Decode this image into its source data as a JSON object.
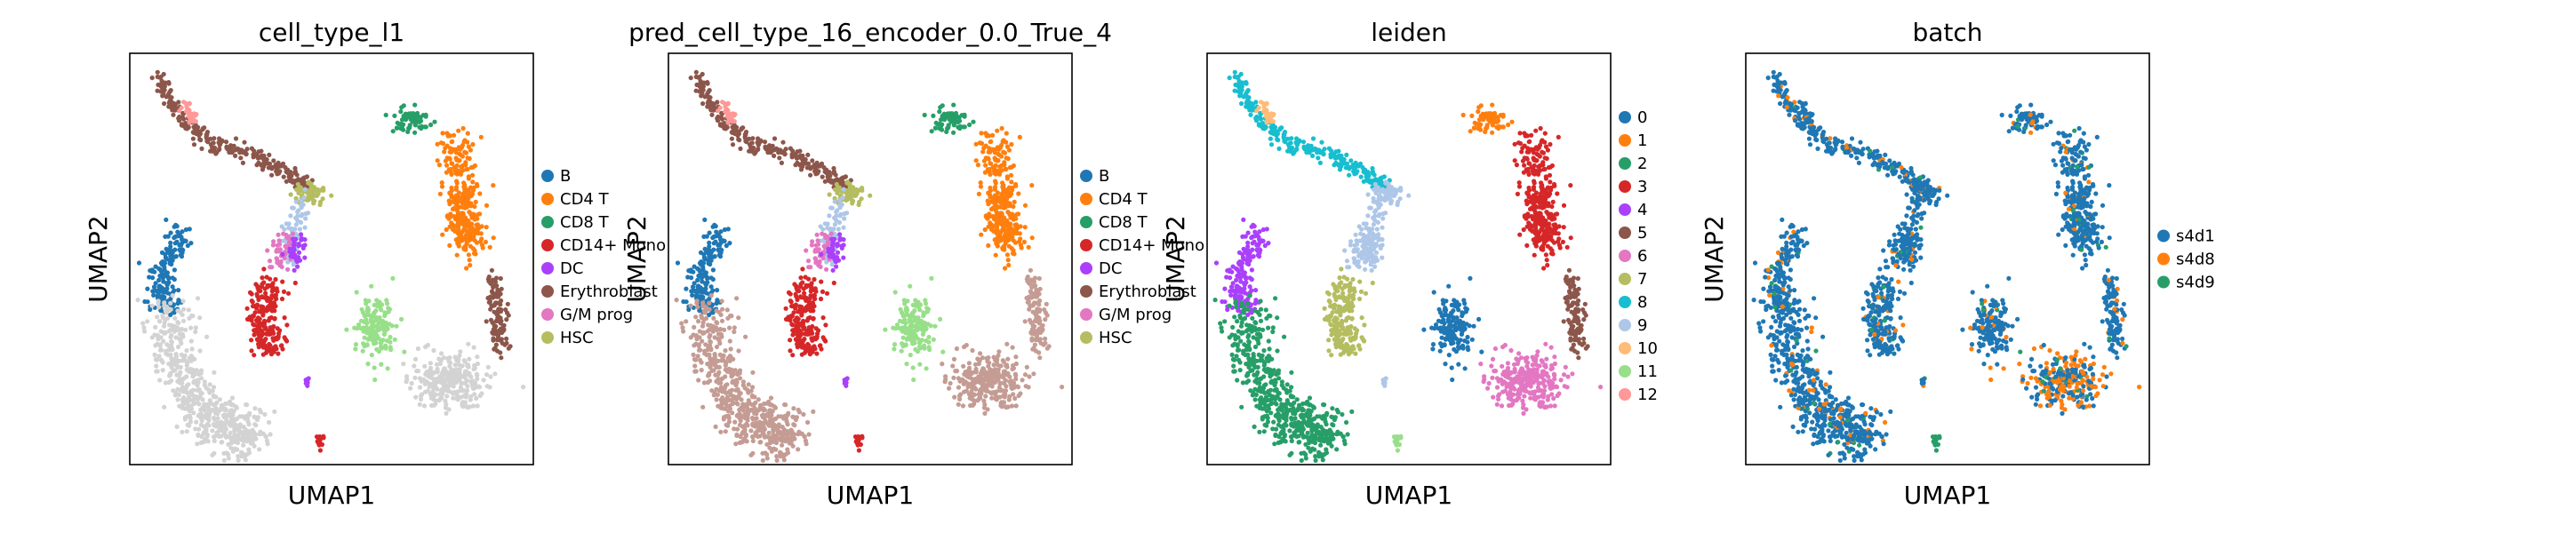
{
  "chart_data": [
    {
      "type": "scatter",
      "title": "cell_type_l1",
      "xlabel": "UMAP1",
      "ylabel": "UMAP2",
      "grid": false,
      "legend_placement": "right",
      "legend": [
        {
          "label": "B",
          "color": "#1f77b4"
        },
        {
          "label": "CD4 T",
          "color": "#ff7f0e"
        },
        {
          "label": "CD8 T",
          "color": "#279e68"
        },
        {
          "label": "CD14+ Mono",
          "color": "#d62728"
        },
        {
          "label": "DC",
          "color": "#aa40fc"
        },
        {
          "label": "Erythroblast",
          "color": "#8c564b"
        },
        {
          "label": "G/M prog",
          "color": "#e377c2"
        },
        {
          "label": "HSC",
          "color": "#b5bd61"
        }
      ],
      "cluster_colors": {
        "upper_arm": "#8c564b",
        "tip": "#ff9896",
        "mid_arm": "#aec7e8",
        "junction": "#b5bd61",
        "left_lobe": "#1f77b4",
        "left_lower": "#d3d3d3",
        "center_stem": "#e377c2",
        "dc_blob": "#aa40fc",
        "mono": "#d62728",
        "small_a": "#aa40fc",
        "small_b": "#d62728",
        "right_top": "#279e68",
        "right_arm": "#ff7f0e",
        "right_side": "#8c564b",
        "right_blob_l": "#98df8a",
        "right_blob_r": "#d3d3d3"
      }
    },
    {
      "type": "scatter",
      "title": "pred_cell_type_16_encoder_0.0_True_4",
      "xlabel": "UMAP1",
      "ylabel": "UMAP2",
      "grid": false,
      "legend_placement": "right",
      "legend": [
        {
          "label": "B",
          "color": "#1f77b4"
        },
        {
          "label": "CD4 T",
          "color": "#ff7f0e"
        },
        {
          "label": "CD8 T",
          "color": "#279e68"
        },
        {
          "label": "CD14+ Mono",
          "color": "#d62728"
        },
        {
          "label": "DC",
          "color": "#aa40fc"
        },
        {
          "label": "Erythroblast",
          "color": "#8c564b"
        },
        {
          "label": "G/M prog",
          "color": "#e377c2"
        },
        {
          "label": "HSC",
          "color": "#b5bd61"
        }
      ],
      "cluster_colors": {
        "upper_arm": "#8c564b",
        "tip": "#ff9896",
        "mid_arm": "#aec7e8",
        "junction": "#b5bd61",
        "left_lobe": "#1f77b4",
        "left_lower": "#c49c94",
        "center_stem": "#e377c2",
        "dc_blob": "#aa40fc",
        "mono": "#d62728",
        "small_a": "#aa40fc",
        "small_b": "#d62728",
        "right_top": "#279e68",
        "right_arm": "#ff7f0e",
        "right_side": "#c49c94",
        "right_blob_l": "#98df8a",
        "right_blob_r": "#c49c94"
      }
    },
    {
      "type": "scatter",
      "title": "leiden",
      "xlabel": "UMAP1",
      "ylabel": "UMAP2",
      "grid": false,
      "legend_placement": "right",
      "legend": [
        {
          "label": "0",
          "color": "#1f77b4"
        },
        {
          "label": "1",
          "color": "#ff7f0e"
        },
        {
          "label": "2",
          "color": "#279e68"
        },
        {
          "label": "3",
          "color": "#d62728"
        },
        {
          "label": "4",
          "color": "#aa40fc"
        },
        {
          "label": "5",
          "color": "#8c564b"
        },
        {
          "label": "6",
          "color": "#e377c2"
        },
        {
          "label": "7",
          "color": "#b5bd61"
        },
        {
          "label": "8",
          "color": "#17becf"
        },
        {
          "label": "9",
          "color": "#aec7e8"
        },
        {
          "label": "10",
          "color": "#ffbb78"
        },
        {
          "label": "11",
          "color": "#98df8a"
        },
        {
          "label": "12",
          "color": "#ff9896"
        }
      ],
      "cluster_colors": {
        "upper_arm": "#17becf",
        "tip": "#ffbb78",
        "mid_arm": "#aec7e8",
        "junction": "#aec7e8",
        "left_lobe": "#aa40fc",
        "left_lower": "#279e68",
        "center_stem": "#aec7e8",
        "dc_blob": "#aec7e8",
        "mono": "#b5bd61",
        "small_a": "#aec7e8",
        "small_b": "#98df8a",
        "right_top": "#ff7f0e",
        "right_arm": "#d62728",
        "right_side": "#8c564b",
        "right_blob_l": "#1f77b4",
        "right_blob_r": "#e377c2"
      }
    },
    {
      "type": "scatter",
      "title": "batch",
      "xlabel": "UMAP1",
      "ylabel": "UMAP2",
      "grid": false,
      "legend_placement": "right",
      "legend": [
        {
          "label": "s4d1",
          "color": "#1f77b4"
        },
        {
          "label": "s4d8",
          "color": "#ff7f0e"
        },
        {
          "label": "s4d9",
          "color": "#279e68"
        }
      ],
      "cluster_colors": {
        "upper_arm": "#1f77b4",
        "tip": "#1f77b4",
        "mid_arm": "#1f77b4",
        "junction": "#1f77b4",
        "left_lobe": "#1f77b4",
        "left_lower": "#1f77b4",
        "center_stem": "#1f77b4",
        "dc_blob": "#1f77b4",
        "mono": "#1f77b4",
        "small_a": "#1f77b4",
        "small_b": "#279e68",
        "right_top": "#1f77b4",
        "right_arm": "#1f77b4",
        "right_side": "#1f77b4",
        "right_blob_l": "#1f77b4",
        "right_blob_r": "#1f77b4"
      },
      "mixed_colors": [
        "#ff7f0e",
        "#279e68"
      ]
    }
  ]
}
